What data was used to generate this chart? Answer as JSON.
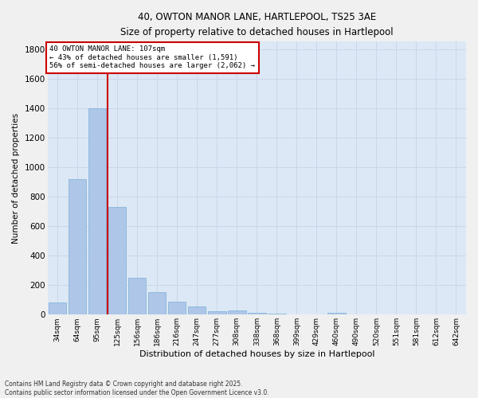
{
  "title_line1": "40, OWTON MANOR LANE, HARTLEPOOL, TS25 3AE",
  "title_line2": "Size of property relative to detached houses in Hartlepool",
  "xlabel": "Distribution of detached houses by size in Hartlepool",
  "ylabel": "Number of detached properties",
  "categories": [
    "34sqm",
    "64sqm",
    "95sqm",
    "125sqm",
    "156sqm",
    "186sqm",
    "216sqm",
    "247sqm",
    "277sqm",
    "308sqm",
    "338sqm",
    "368sqm",
    "399sqm",
    "429sqm",
    "460sqm",
    "490sqm",
    "520sqm",
    "551sqm",
    "581sqm",
    "612sqm",
    "642sqm"
  ],
  "values": [
    85,
    920,
    1400,
    730,
    248,
    150,
    88,
    55,
    25,
    30,
    12,
    5,
    0,
    0,
    10,
    0,
    0,
    0,
    0,
    0,
    0
  ],
  "bar_color": "#aec6e8",
  "bar_edge_color": "#7ab0d8",
  "red_line_x": 2.5,
  "annotation_line1": "40 OWTON MANOR LANE: 107sqm",
  "annotation_line2": "← 43% of detached houses are smaller (1,591)",
  "annotation_line3": "56% of semi-detached houses are larger (2,062) →",
  "annotation_box_color": "#ffffff",
  "annotation_box_edge": "#cc0000",
  "vline_color": "#cc0000",
  "ylim": [
    0,
    1850
  ],
  "yticks": [
    0,
    200,
    400,
    600,
    800,
    1000,
    1200,
    1400,
    1600,
    1800
  ],
  "grid_color": "#c8d4e8",
  "background_color": "#dce8f5",
  "fig_background": "#f0f0f0",
  "footer_line1": "Contains HM Land Registry data © Crown copyright and database right 2025.",
  "footer_line2": "Contains public sector information licensed under the Open Government Licence v3.0."
}
